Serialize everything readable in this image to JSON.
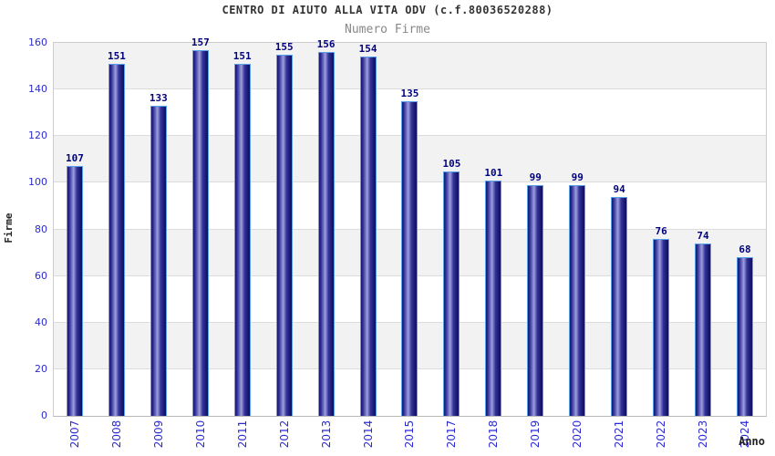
{
  "chart_data": {
    "type": "bar",
    "title": "CENTRO DI AIUTO ALLA VITA ODV (c.f.80036520288)",
    "subtitle": "Numero Firme",
    "xlabel": "Anno",
    "ylabel": "Firme",
    "categories": [
      "2007",
      "2008",
      "2009",
      "2010",
      "2011",
      "2012",
      "2013",
      "2014",
      "2015",
      "2017",
      "2018",
      "2019",
      "2020",
      "2021",
      "2022",
      "2023",
      "2024"
    ],
    "values": [
      107,
      151,
      133,
      157,
      151,
      155,
      156,
      154,
      135,
      105,
      101,
      99,
      99,
      94,
      76,
      74,
      68
    ],
    "ylim": [
      0,
      160
    ],
    "yticks": [
      0,
      20,
      40,
      60,
      80,
      100,
      120,
      140,
      160
    ],
    "grid": true,
    "legend": "none",
    "background_bands": "alternating gray/white horizontal bands, gray band at top (140-160)",
    "bar_labels": "value shown above each bar",
    "x_tick_rotation": -90
  },
  "colors": {
    "title": "#333333",
    "subtitle": "#888888",
    "axis_titles": "#222222",
    "tick_labels": "#2b2bd2",
    "value_labels": "#000080",
    "bar_border": "#58a0e8",
    "bar_dark": "#14146a",
    "bar_mid": "#34349a",
    "bar_light": "#9e9edf",
    "band_gray": "#f2f2f2",
    "band_white": "#ffffff",
    "gridline": "#dcdcdc",
    "plot_border": "#cccccc"
  }
}
